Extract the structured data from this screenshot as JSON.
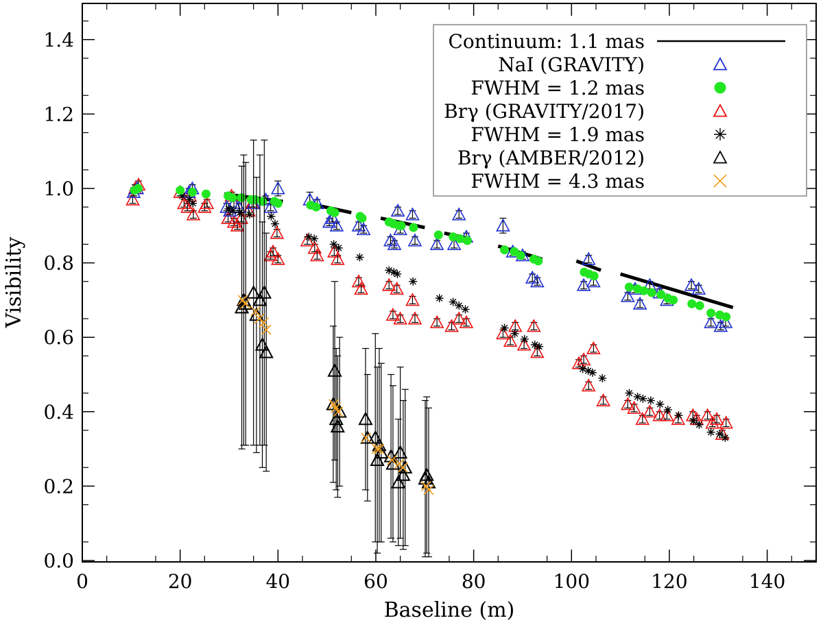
{
  "chart_data": {
    "type": "scatter",
    "xlabel": "Baseline (m)",
    "ylabel": "Visibility",
    "xlim": [
      0,
      150
    ],
    "ylim": [
      0,
      1.5
    ],
    "xticks": [
      "0",
      "20",
      "40",
      "60",
      "80",
      "100",
      "120",
      "140"
    ],
    "yticks": [
      "0.0",
      "0.2",
      "0.4",
      "0.6",
      "0.8",
      "1.0",
      "1.2",
      "1.4"
    ],
    "legend_position": "top-right",
    "legend": [
      {
        "label": "Continuum: 1.1 mas",
        "symbol": "line",
        "color": "#000000"
      },
      {
        "label": "NaI (GRAVITY)",
        "symbol": "triangle",
        "color": "#1f2fd0"
      },
      {
        "label": "FWHM = 1.2 mas",
        "symbol": "circle",
        "color": "#22e622"
      },
      {
        "label": "Brγ (GRAVITY/2017)",
        "symbol": "triangle",
        "color": "#ee1111"
      },
      {
        "label": "FWHM = 1.9 mas",
        "symbol": "asterisk",
        "color": "#000000"
      },
      {
        "label": "Brγ (AMBER/2012)",
        "symbol": "triangle",
        "color": "#000000"
      },
      {
        "label": "FWHM = 4.3 mas",
        "symbol": "cross",
        "color": "#f0a020"
      }
    ],
    "series": [
      {
        "name": "Continuum: 1.1 mas",
        "style": "line",
        "color": "#000000",
        "segments": [
          [
            [
              29,
              0.985
            ],
            [
              41,
              0.965
            ]
          ],
          [
            [
              46,
              0.96
            ],
            [
              55,
              0.935
            ]
          ],
          [
            [
              61,
              0.92
            ],
            [
              70,
              0.895
            ]
          ],
          [
            [
              74,
              0.88
            ],
            [
              79,
              0.865
            ]
          ],
          [
            [
              85,
              0.845
            ],
            [
              94,
              0.81
            ]
          ],
          [
            [
              101,
              0.805
            ],
            [
              106,
              0.78
            ]
          ],
          [
            [
              110,
              0.77
            ],
            [
              133,
              0.68
            ]
          ]
        ]
      },
      {
        "name": "NaI (GRAVITY)",
        "style": "triangle",
        "color": "#1f2fd0",
        "x": [
          10.5,
          11.2,
          21.8,
          22.5,
          29.5,
          30.2,
          31.0,
          32.0,
          35.0,
          37.5,
          38.5,
          40.0,
          46.5,
          48.0,
          50.5,
          51.2,
          52.0,
          56.5,
          57.5,
          63.0,
          63.8,
          64.5,
          65.0,
          67.5,
          68.0,
          72.5,
          76.0,
          77.0,
          78.5,
          86.0,
          88.0,
          90.0,
          92.0,
          93.0,
          102.5,
          103.5,
          104.5,
          111.5,
          113.0,
          114.0,
          116.0,
          118.0,
          119.5,
          124.5,
          126.0,
          128.5,
          130.5,
          131.5
        ],
        "y": [
          0.99,
          1.0,
          0.99,
          1.0,
          0.95,
          0.94,
          0.96,
          0.95,
          0.96,
          0.97,
          0.95,
          1.0,
          0.97,
          0.96,
          0.91,
          0.92,
          0.9,
          0.9,
          0.89,
          0.86,
          0.85,
          0.94,
          0.89,
          0.93,
          0.86,
          0.85,
          0.85,
          0.93,
          0.87,
          0.9,
          0.83,
          0.82,
          0.76,
          0.75,
          0.74,
          0.81,
          0.75,
          0.71,
          0.73,
          0.69,
          0.74,
          0.72,
          0.7,
          0.74,
          0.73,
          0.64,
          0.63,
          0.64
        ],
        "err": [
          0.01,
          0.01,
          0.01,
          0.01,
          0.01,
          0.01,
          0.01,
          0.01,
          0.01,
          0.01,
          0.01,
          0.02,
          0.02,
          0.01,
          0.01,
          0.01,
          0.01,
          0.01,
          0.01,
          0.01,
          0.01,
          0.01,
          0.01,
          0.01,
          0.01,
          0.01,
          0.01,
          0.01,
          0.01,
          0.02,
          0.01,
          0.01,
          0.01,
          0.01,
          0.01,
          0.01,
          0.01,
          0.01,
          0.01,
          0.01,
          0.01,
          0.01,
          0.01,
          0.01,
          0.01,
          0.01,
          0.01,
          0.01
        ]
      },
      {
        "name": "FWHM = 1.2 mas",
        "style": "circle",
        "color": "#22e622",
        "x": [
          10.7,
          11.4,
          20.0,
          22.5,
          25.3,
          29.8,
          30.7,
          32.5,
          34.5,
          35.3,
          36.8,
          39.3,
          40.0,
          46.7,
          47.8,
          50.8,
          51.6,
          56.8,
          57.2,
          62.7,
          63.6,
          64.7,
          65.2,
          67.7,
          72.8,
          75.8,
          77.2,
          78.7,
          86.3,
          88.3,
          89.6,
          92.3,
          93.2,
          102.6,
          103.6,
          104.6,
          111.8,
          113.5,
          114.8,
          116.4,
          118.3,
          119.7,
          120.8,
          124.6,
          126.2,
          128.5,
          130.3,
          131.6
        ],
        "y": [
          0.995,
          1.0,
          0.995,
          0.99,
          0.985,
          0.98,
          0.975,
          0.975,
          0.97,
          0.97,
          0.965,
          0.965,
          0.96,
          0.955,
          0.95,
          0.94,
          0.935,
          0.925,
          0.92,
          0.91,
          0.905,
          0.9,
          0.9,
          0.895,
          0.875,
          0.87,
          0.865,
          0.86,
          0.835,
          0.83,
          0.82,
          0.81,
          0.805,
          0.775,
          0.77,
          0.765,
          0.735,
          0.73,
          0.725,
          0.72,
          0.715,
          0.705,
          0.7,
          0.69,
          0.685,
          0.665,
          0.66,
          0.655
        ]
      },
      {
        "name": "Brγ (GRAVITY/2017)",
        "style": "triangle",
        "color": "#ee1111",
        "x": [
          10.3,
          10.8,
          11.5,
          20.0,
          20.8,
          21.5,
          22.0,
          22.7,
          25.0,
          25.5,
          29.8,
          30.5,
          31.0,
          31.7,
          32.5,
          34.0,
          34.7,
          38.5,
          39.0,
          39.8,
          40.0,
          46.0,
          47.5,
          48.0,
          51.5,
          52.2,
          56.5,
          57.0,
          62.7,
          63.5,
          64.3,
          65.0,
          67.5,
          68.0,
          72.5,
          75.5,
          77.0,
          78.5,
          86.0,
          87.5,
          88.5,
          90.3,
          92.3,
          93.0,
          101.5,
          102.5,
          103.5,
          104.5,
          106.5,
          111.5,
          112.8,
          114.5,
          116.0,
          118.0,
          119.5,
          121.8,
          124.8,
          125.6,
          127.8,
          128.8,
          129.7,
          130.8,
          131.6
        ],
        "y": [
          0.97,
          1.0,
          1.01,
          0.99,
          0.96,
          0.95,
          0.98,
          0.93,
          0.95,
          0.96,
          0.92,
          0.98,
          0.91,
          0.9,
          0.92,
          0.94,
          0.96,
          0.82,
          0.83,
          0.88,
          0.81,
          0.86,
          0.84,
          0.82,
          0.83,
          0.81,
          0.75,
          0.73,
          0.74,
          0.66,
          0.73,
          0.65,
          0.7,
          0.65,
          0.64,
          0.63,
          0.65,
          0.64,
          0.61,
          0.59,
          0.63,
          0.58,
          0.63,
          0.56,
          0.53,
          0.54,
          0.47,
          0.57,
          0.43,
          0.42,
          0.41,
          0.38,
          0.4,
          0.39,
          0.39,
          0.38,
          0.39,
          0.38,
          0.39,
          0.37,
          0.38,
          0.34,
          0.37
        ],
        "err": [
          0.01,
          0.01,
          0.01,
          0.01,
          0.01,
          0.01,
          0.01,
          0.01,
          0.01,
          0.01,
          0.01,
          0.01,
          0.01,
          0.01,
          0.01,
          0.01,
          0.01,
          0.01,
          0.01,
          0.01,
          0.01,
          0.01,
          0.01,
          0.01,
          0.01,
          0.01,
          0.01,
          0.01,
          0.01,
          0.01,
          0.01,
          0.01,
          0.01,
          0.01,
          0.01,
          0.01,
          0.01,
          0.01,
          0.01,
          0.01,
          0.01,
          0.01,
          0.01,
          0.01,
          0.01,
          0.01,
          0.01,
          0.01,
          0.01,
          0.01,
          0.01,
          0.01,
          0.01,
          0.01,
          0.01,
          0.01,
          0.01,
          0.01,
          0.01,
          0.01,
          0.01,
          0.01,
          0.01
        ]
      },
      {
        "name": "FWHM = 1.9 mas",
        "style": "asterisk",
        "color": "#000000",
        "x": [
          10.5,
          11.3,
          20.4,
          21.9,
          22.6,
          29.9,
          30.8,
          32.2,
          34.2,
          38.6,
          39.4,
          46.3,
          47.4,
          51.4,
          52.4,
          56.7,
          62.7,
          63.7,
          64.4,
          67.6,
          73.0,
          75.8,
          77.0,
          78.3,
          86.3,
          88.4,
          90.4,
          92.5,
          93.4,
          102.3,
          103.4,
          104.3,
          106.3,
          111.8,
          113.5,
          114.6,
          116.2,
          118.1,
          119.7,
          121.9,
          124.9,
          126.1,
          128.5,
          130.3,
          131.4
        ],
        "y": [
          0.995,
          1.0,
          0.98,
          0.97,
          0.96,
          0.945,
          0.94,
          0.935,
          0.93,
          0.925,
          0.905,
          0.87,
          0.865,
          0.85,
          0.84,
          0.815,
          0.78,
          0.775,
          0.77,
          0.75,
          0.705,
          0.695,
          0.685,
          0.675,
          0.625,
          0.61,
          0.595,
          0.58,
          0.575,
          0.515,
          0.51,
          0.505,
          0.49,
          0.45,
          0.44,
          0.435,
          0.43,
          0.42,
          0.405,
          0.39,
          0.375,
          0.365,
          0.345,
          0.34,
          0.33
        ]
      },
      {
        "name": "Brγ (AMBER/2012)",
        "style": "triangle",
        "color": "#000000",
        "x": [
          32.6,
          33.0,
          33.4,
          35.0,
          35.6,
          36.3,
          36.8,
          37.2,
          37.6,
          51.3,
          51.6,
          51.9,
          52.2,
          52.6,
          57.9,
          58.3,
          59.9,
          60.3,
          60.7,
          61.1,
          63.1,
          63.5,
          64.6,
          65.0,
          65.6,
          66.0,
          70.1,
          70.4,
          70.8
        ],
        "y": [
          0.68,
          0.7,
          0.69,
          0.72,
          0.66,
          0.7,
          0.58,
          0.72,
          0.56,
          0.42,
          0.51,
          0.38,
          0.36,
          0.4,
          0.38,
          0.33,
          0.33,
          0.27,
          0.31,
          0.29,
          0.28,
          0.26,
          0.21,
          0.29,
          0.23,
          0.25,
          0.22,
          0.23,
          0.21
        ],
        "err": [
          0.38,
          0.39,
          0.38,
          0.41,
          0.37,
          0.39,
          0.33,
          0.41,
          0.32,
          0.21,
          0.24,
          0.19,
          0.19,
          0.2,
          0.19,
          0.17,
          0.28,
          0.25,
          0.26,
          0.24,
          0.22,
          0.21,
          0.17,
          0.23,
          0.2,
          0.21,
          0.21,
          0.21,
          0.2
        ]
      },
      {
        "name": "FWHM = 4.3 mas",
        "style": "cross",
        "color": "#f0a020",
        "x": [
          32.8,
          33.3,
          35.4,
          36.2,
          37.1,
          37.6,
          51.4,
          51.8,
          52.3,
          58.0,
          60.2,
          60.7,
          63.3,
          64.8,
          65.5,
          70.3,
          70.8
        ],
        "y": [
          0.7,
          0.69,
          0.67,
          0.65,
          0.64,
          0.62,
          0.42,
          0.41,
          0.4,
          0.33,
          0.3,
          0.3,
          0.27,
          0.26,
          0.25,
          0.2,
          0.19
        ]
      }
    ]
  }
}
